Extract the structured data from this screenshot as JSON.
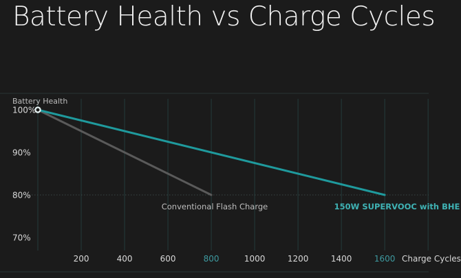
{
  "chart_data": {
    "type": "line",
    "title": "Battery Health vs Charge Cycles",
    "xlabel": "Charge Cycles",
    "ylabel": "Battery Health",
    "xlim": [
      0,
      1800
    ],
    "ylim": [
      70,
      100
    ],
    "x_ticks": [
      {
        "value": 200,
        "label": "200",
        "highlight": false
      },
      {
        "value": 400,
        "label": "400",
        "highlight": false
      },
      {
        "value": 600,
        "label": "600",
        "highlight": false
      },
      {
        "value": 800,
        "label": "800",
        "highlight": true
      },
      {
        "value": 1000,
        "label": "1000",
        "highlight": false
      },
      {
        "value": 1200,
        "label": "1200",
        "highlight": false
      },
      {
        "value": 1400,
        "label": "1400",
        "highlight": false
      },
      {
        "value": 1600,
        "label": "1600",
        "highlight": true
      }
    ],
    "y_ticks": [
      {
        "value": 100,
        "label": "100%"
      },
      {
        "value": 90,
        "label": "90%"
      },
      {
        "value": 80,
        "label": "80%"
      },
      {
        "value": 70,
        "label": "70%"
      }
    ],
    "series": [
      {
        "name": "150W SUPERVOOC with BHE",
        "x": [
          0,
          1600
        ],
        "y": [
          100,
          80
        ],
        "color": "#1f9a9d"
      },
      {
        "name": "Conventional Flash Charge",
        "x": [
          0,
          800
        ],
        "y": [
          100,
          80
        ],
        "color": "#5a5a5a"
      }
    ],
    "reference_line": {
      "y": 80,
      "style": "dotted"
    },
    "colors": {
      "background": "#1b1b1b",
      "grid": "#243c3c",
      "text": "#d4d4d4",
      "accent": "#1f9a9d",
      "accent_text": "#3fb3b5",
      "highlight_tick": "#3e9aa0"
    }
  }
}
